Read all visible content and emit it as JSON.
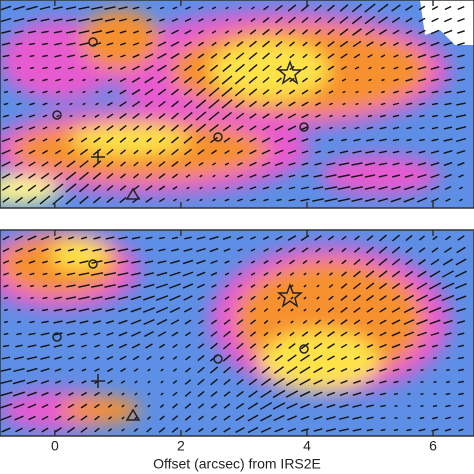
{
  "chart_data": {
    "type": "map",
    "xlabel": "Offset (arcsec) from IRS2E",
    "xlim": [
      -0.87,
      6.65
    ],
    "xticks": [
      0,
      2,
      4,
      6
    ]
  }
}
